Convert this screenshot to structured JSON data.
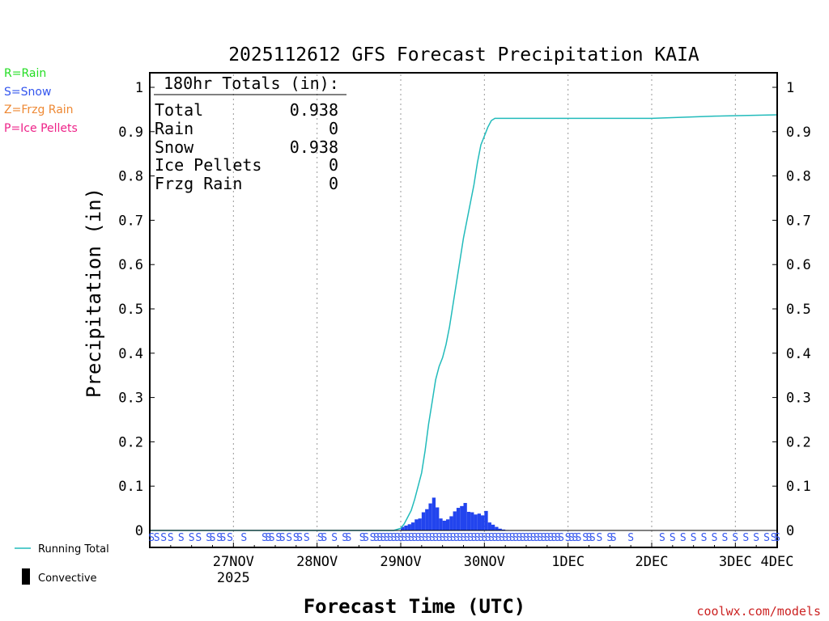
{
  "chart_data": {
    "type": "bar+line",
    "title": "2025112612 GFS Forecast Precipitation KAIA",
    "xlabel": "Forecast Time (UTC)",
    "ylabel": "Precipitation (in)",
    "ylim": [
      0,
      1
    ],
    "y_ticks": [
      0,
      0.1,
      0.2,
      0.3,
      0.4,
      0.5,
      0.6,
      0.7,
      0.8,
      0.9,
      1
    ],
    "y_tick_labels": [
      "0",
      "0.1",
      "0.2",
      "0.3",
      "0.4",
      "0.5",
      "0.6",
      "0.7",
      "0.8",
      "0.9",
      "1"
    ],
    "x_range_hours": [
      -12,
      168
    ],
    "x_ticks": [
      {
        "hours": 12,
        "label": "27NOV",
        "sublabel": "2025"
      },
      {
        "hours": 36,
        "label": "28NOV",
        "sublabel": ""
      },
      {
        "hours": 60,
        "label": "29NOV",
        "sublabel": ""
      },
      {
        "hours": 84,
        "label": "30NOV",
        "sublabel": ""
      },
      {
        "hours": 108,
        "label": "1DEC",
        "sublabel": ""
      },
      {
        "hours": 132,
        "label": "2DEC",
        "sublabel": ""
      },
      {
        "hours": 156,
        "label": "3DEC",
        "sublabel": ""
      },
      {
        "hours": 168,
        "label": "4DEC",
        "sublabel": ""
      }
    ],
    "totals_box": {
      "heading": "180hr Totals (in):",
      "rows": [
        {
          "label": "Total",
          "value": "0.938"
        },
        {
          "label": "Rain",
          "value": "0"
        },
        {
          "label": "Snow",
          "value": "0.938"
        },
        {
          "label": "Ice Pellets",
          "value": "0"
        },
        {
          "label": "Frzg Rain",
          "value": "0"
        }
      ]
    },
    "precip_type_legend": [
      {
        "text": "R=Rain",
        "color": "#22dd22"
      },
      {
        "text": "S=Snow",
        "color": "#3355ee"
      },
      {
        "text": "Z=Frzg Rain",
        "color": "#ee8833"
      },
      {
        "text": "P=Ice Pellets",
        "color": "#ee2288"
      }
    ],
    "series_legend": {
      "running_total": "Running Total",
      "convective": "Convective"
    },
    "running_total": {
      "name": "Running Total",
      "color": "#22bbbb",
      "hours": [
        -12,
        58,
        60,
        61,
        62,
        63,
        64,
        65,
        66,
        67,
        68,
        69,
        70,
        71,
        72,
        73,
        74,
        75,
        76,
        77,
        78,
        79,
        80,
        81,
        82,
        83,
        84,
        85,
        86,
        87,
        88,
        89,
        90,
        100,
        132,
        150,
        168
      ],
      "values": [
        0,
        0,
        0.005,
        0.015,
        0.03,
        0.045,
        0.07,
        0.1,
        0.13,
        0.18,
        0.24,
        0.29,
        0.34,
        0.37,
        0.39,
        0.42,
        0.46,
        0.51,
        0.56,
        0.61,
        0.66,
        0.7,
        0.74,
        0.78,
        0.83,
        0.87,
        0.89,
        0.91,
        0.925,
        0.93,
        0.93,
        0.93,
        0.93,
        0.93,
        0.93,
        0.935,
        0.938
      ]
    },
    "hourly_precip": {
      "name": "Snow",
      "color": "#2244ee",
      "hours": [
        61,
        62,
        63,
        64,
        65,
        66,
        67,
        68,
        69,
        70,
        71,
        72,
        73,
        74,
        75,
        76,
        77,
        78,
        79,
        80,
        81,
        82,
        83,
        84,
        85,
        86,
        87,
        88,
        89,
        90,
        91
      ],
      "values": [
        0.008,
        0.011,
        0.014,
        0.018,
        0.025,
        0.027,
        0.041,
        0.048,
        0.061,
        0.074,
        0.052,
        0.027,
        0.022,
        0.025,
        0.032,
        0.043,
        0.051,
        0.055,
        0.062,
        0.042,
        0.041,
        0.036,
        0.038,
        0.034,
        0.044,
        0.018,
        0.013,
        0.008,
        0.004,
        0.002,
        0.001
      ]
    },
    "precip_type_markers": {
      "symbol": "S",
      "color": "#3355ee",
      "hours": [
        -11.5,
        -10,
        -8,
        -6,
        -3,
        0,
        2,
        5,
        6,
        8,
        9,
        11,
        15,
        21,
        22,
        23,
        25,
        26,
        28,
        30,
        31,
        33,
        37,
        38,
        41,
        44,
        45,
        49,
        50,
        52,
        53,
        54,
        55,
        56,
        57,
        58,
        59,
        60,
        61,
        62,
        63,
        64,
        65,
        66,
        67,
        68,
        69,
        70,
        71,
        72,
        73,
        74,
        75,
        76,
        77,
        78,
        79,
        80,
        81,
        82,
        83,
        84,
        85,
        86,
        87,
        88,
        89,
        90,
        91,
        92,
        93,
        94,
        95,
        96,
        97,
        98,
        99,
        100,
        101,
        102,
        103,
        104,
        105,
        106,
        108,
        109,
        110,
        111,
        113,
        114,
        115,
        117,
        120,
        121,
        126,
        135,
        138,
        141,
        144,
        147,
        150,
        153,
        156,
        159,
        162,
        165,
        167,
        168
      ]
    }
  },
  "footer": {
    "credit": "coolwx.com/models"
  }
}
